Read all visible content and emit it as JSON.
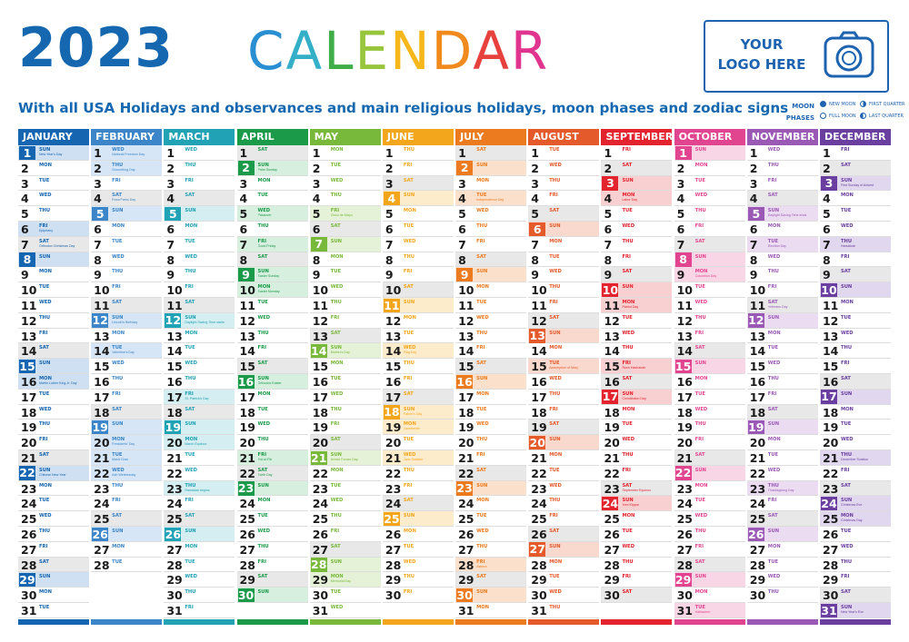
{
  "header": {
    "year": "2023",
    "word": "CALENDAR",
    "word_colors": [
      "#2a8fd2",
      "#33b0c8",
      "#3fae49",
      "#97c63c",
      "#f6b71b",
      "#f08a1d",
      "#e6413c",
      "#e0348e"
    ],
    "subtitle": "With all USA Holidays and observances and main religious holidays, moon phases and zodiac signs"
  },
  "logo": {
    "line1": "YOUR",
    "line2": "LOGO HERE",
    "icon": "camera-icon",
    "color": "#1e63b0"
  },
  "moon_legend": {
    "label1": "MOON",
    "label2": "PHASES",
    "new": "NEW MOON",
    "first": "FIRST QUARTER",
    "full": "FULL MOON",
    "last": "LAST QUARTER"
  },
  "weekday_abbr": [
    "MON",
    "TUE",
    "WED",
    "THU",
    "FRI",
    "SAT",
    "SUN"
  ],
  "months": [
    {
      "name": "JANUARY",
      "color": "#1565b0",
      "light": "#cfe0f3",
      "days": 31,
      "start": 6,
      "holidays": {
        "1": "New Year's Day",
        "6": "Epiphany",
        "7": "Orthodox Christmas Day",
        "16": "Martin Luther King Jr. Day",
        "22": "Chinese New Year"
      }
    },
    {
      "name": "FEBRUARY",
      "color": "#3b85c8",
      "light": "#d6e6f6",
      "days": 28,
      "start": 2,
      "holidays": {
        "1": "National Freedom Day",
        "2": "Groundhog Day",
        "4": "Rosa Parks Day",
        "12": "Lincoln's Birthday",
        "14": "Valentine's Day",
        "20": "Presidents' Day",
        "21": "Mardi Gras",
        "22": "Ash Wednesday"
      }
    },
    {
      "name": "MARCH",
      "color": "#21a2b5",
      "light": "#d4eef1",
      "days": 31,
      "start": 2,
      "holidays": {
        "12": "Daylight Saving Time starts",
        "17": "St. Patrick's Day",
        "20": "March Equinox",
        "23": "Ramadan begins"
      }
    },
    {
      "name": "APRIL",
      "color": "#1b9b4a",
      "light": "#d6efdf",
      "days": 30,
      "start": 5,
      "holidays": {
        "2": "Palm Sunday",
        "5": "Passover",
        "7": "Good Friday",
        "9": "Easter Sunday",
        "10": "Easter Monday",
        "16": "Orthodox Easter",
        "21": "Eid al-Fitr",
        "22": "Earth Day"
      }
    },
    {
      "name": "MAY",
      "color": "#78b83a",
      "light": "#e5f2d8",
      "days": 31,
      "start": 0,
      "holidays": {
        "5": "Cinco de Mayo",
        "14": "Mother's Day",
        "21": "Armed Forces Day",
        "29": "Memorial Day"
      }
    },
    {
      "name": "JUNE",
      "color": "#f3a61c",
      "light": "#fdeccc",
      "days": 30,
      "start": 3,
      "holidays": {
        "14": "Flag Day",
        "18": "Father's Day",
        "19": "Juneteenth",
        "21": "June Solstice"
      }
    },
    {
      "name": "JULY",
      "color": "#ec7a1e",
      "light": "#fbe1cc",
      "days": 31,
      "start": 5,
      "holidays": {
        "4": "Independence Day",
        "28": "Ashura"
      }
    },
    {
      "name": "AUGUST",
      "color": "#e45a2a",
      "light": "#f9d9cd",
      "days": 31,
      "start": 1,
      "holidays": {
        "15": "Assumption of Mary"
      }
    },
    {
      "name": "SEPTEMBER",
      "color": "#e3232d",
      "light": "#f9d0d1",
      "days": 30,
      "start": 4,
      "holidays": {
        "4": "Labor Day",
        "11": "Patriot Day",
        "15": "Rosh Hashanah",
        "17": "Constitution Day",
        "23": "September Equinox",
        "24": "Yom Kippur"
      }
    },
    {
      "name": "OCTOBER",
      "color": "#e2458f",
      "light": "#f9d6e6",
      "days": 31,
      "start": 6,
      "holidays": {
        "9": "Columbus Day",
        "31": "Halloween"
      }
    },
    {
      "name": "NOVEMBER",
      "color": "#9b59b6",
      "light": "#ebdcf1",
      "days": 30,
      "start": 2,
      "holidays": {
        "5": "Daylight Saving Time ends",
        "7": "Election Day",
        "11": "Veterans Day",
        "23": "Thanksgiving Day"
      }
    },
    {
      "name": "DECEMBER",
      "color": "#6a3fa0",
      "light": "#e1d7ee",
      "days": 31,
      "start": 4,
      "holidays": {
        "3": "First Sunday of Advent",
        "7": "Hanukkah",
        "21": "December Solstice",
        "24": "Christmas Eve",
        "25": "Christmas Day",
        "31": "New Year's Eve"
      }
    }
  ]
}
